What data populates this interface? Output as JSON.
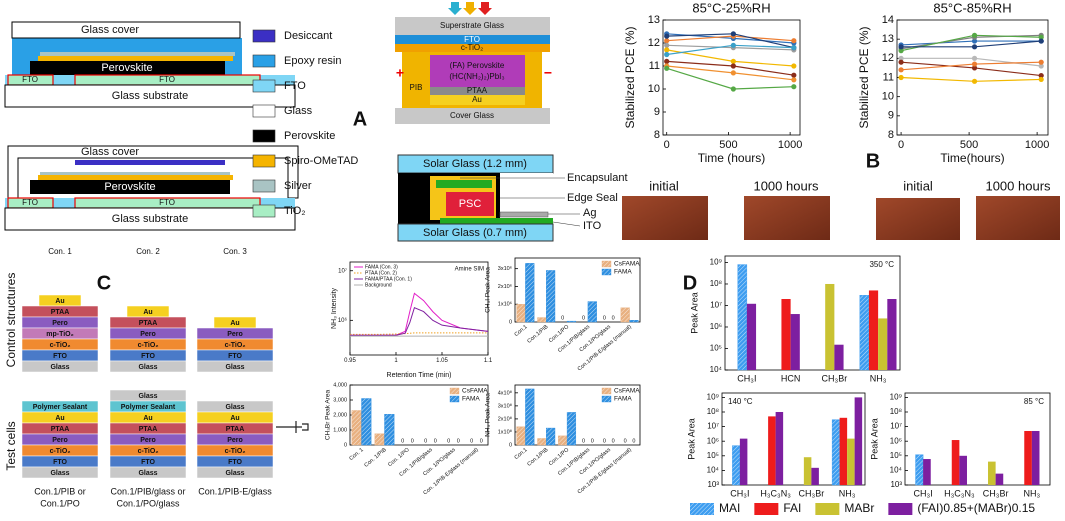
{
  "panel_labels": [
    "A",
    "B",
    "C",
    "D"
  ],
  "encapsulation_diagrams": [
    {
      "glass_cover": "Glass cover",
      "perovskite": "Perovskite",
      "fto": [
        "FTO",
        "FTO"
      ],
      "substrate": "Glass substrate"
    },
    {
      "glass_cover": "Glass cover",
      "perovskite": "Perovskite",
      "fto": [
        "FTO",
        "FTO"
      ],
      "substrate": "Glass substrate"
    }
  ],
  "materials_legend": [
    {
      "name": "Desiccant",
      "color": "#3b2fc4"
    },
    {
      "name": "Epoxy resin",
      "color": "#2aa0e6"
    },
    {
      "name": "FTO",
      "color": "#7fd6f5"
    },
    {
      "name": "Glass",
      "color": "#ffffff"
    },
    {
      "name": "Perovskite",
      "color": "#000000"
    },
    {
      "name": "Spiro-OMeTAD",
      "color": "#f5b400"
    },
    {
      "name": "Silver",
      "color": "#a9c4c4"
    },
    {
      "name": "TiO₂",
      "color": "#a8eec4"
    }
  ],
  "device_diagram": {
    "superstrate": "Superstrate Glass",
    "fto": "FTO",
    "ctio2": "c-TiO₂",
    "perovskite": [
      "(FA) Perovskite",
      "(HC(NH₂)₂)PbI₃"
    ],
    "ptaa": "PTAA",
    "au": "Au",
    "pib": "PIB",
    "cover": "Cover Glass",
    "plus": "+",
    "minus": "−"
  },
  "module_diagram": {
    "top_glass": "Solar Glass (1.2 mm)",
    "psc": "PSC",
    "bottom_glass": "Solar Glass (0.7 mm)",
    "encapsulant": "Encapsulant",
    "edge_seal": "Edge Seal",
    "ag": "Ag",
    "ito": "ITO"
  },
  "photos": [
    [
      "initial",
      "1000 hours"
    ],
    [
      "initial",
      "1000 hours"
    ]
  ],
  "structures": {
    "row_labels": [
      "Control structures",
      "Test cells"
    ],
    "columns": [
      "Con. 1",
      "Con. 2",
      "Con. 3"
    ],
    "control_stacks": [
      [
        {
          "name": "Au",
          "color": "#f5d020"
        },
        {
          "name": "PTAA",
          "color": "#c4505c"
        },
        {
          "name": "Pero",
          "color": "#8a5cc0"
        },
        {
          "name": "mp-TiO₂",
          "color": "#c27ab8"
        },
        {
          "name": "c-TiO₂",
          "color": "#f08a30"
        },
        {
          "name": "FTO",
          "color": "#4a7ac8"
        },
        {
          "name": "Glass",
          "color": "#c8c8c8"
        }
      ],
      [
        {
          "name": "Au",
          "color": "#f5d020"
        },
        {
          "name": "PTAA",
          "color": "#c4505c"
        },
        {
          "name": "Pero",
          "color": "#8a5cc0"
        },
        {
          "name": "c-TiO₂",
          "color": "#f08a30"
        },
        {
          "name": "FTO",
          "color": "#4a7ac8"
        },
        {
          "name": "Glass",
          "color": "#c8c8c8"
        }
      ],
      [
        {
          "name": "Au",
          "color": "#f5d020"
        },
        {
          "name": "Pero",
          "color": "#8a5cc0"
        },
        {
          "name": "c-TiO₂",
          "color": "#f08a30"
        },
        {
          "name": "FTO",
          "color": "#4a7ac8"
        },
        {
          "name": "Glass",
          "color": "#c8c8c8"
        }
      ]
    ],
    "test_stacks": [
      [
        {
          "name": "Polymer Sealant",
          "color": "#5ec4d0"
        },
        {
          "name": "Au",
          "color": "#f5d020"
        },
        {
          "name": "PTAA",
          "color": "#c4505c"
        },
        {
          "name": "Pero",
          "color": "#8a5cc0"
        },
        {
          "name": "c-TiO₂",
          "color": "#f08a30"
        },
        {
          "name": "FTO",
          "color": "#4a7ac8"
        },
        {
          "name": "Glass",
          "color": "#c8c8c8"
        }
      ],
      [
        {
          "name": "Glass",
          "color": "#c8c8c8"
        },
        {
          "name": "Polymer Sealant",
          "color": "#5ec4d0"
        },
        {
          "name": "Au",
          "color": "#f5d020"
        },
        {
          "name": "PTAA",
          "color": "#c4505c"
        },
        {
          "name": "Pero",
          "color": "#8a5cc0"
        },
        {
          "name": "c-TiO₂",
          "color": "#f08a30"
        },
        {
          "name": "FTO",
          "color": "#4a7ac8"
        },
        {
          "name": "Glass",
          "color": "#c8c8c8"
        }
      ],
      [
        {
          "name": "Glass",
          "color": "#c8c8c8"
        },
        {
          "name": "Au",
          "color": "#f5d020"
        },
        {
          "name": "PTAA",
          "color": "#c4505c"
        },
        {
          "name": "Pero",
          "color": "#8a5cc0"
        },
        {
          "name": "c-TiO₂",
          "color": "#f08a30"
        },
        {
          "name": "FTO",
          "color": "#4a7ac8"
        },
        {
          "name": "Glass",
          "color": "#c8c8c8"
        }
      ]
    ],
    "captions": [
      [
        "Con.1/PIB or",
        "Con.1/PO"
      ],
      [
        "Con.1/PIB/glass or",
        "Con.1/PO/glass"
      ],
      [
        "Con.1/PIB-E/glass"
      ]
    ]
  },
  "chart_data": [
    {
      "type": "line",
      "title": "85°C-25%RH",
      "xlabel": "Time (hours)",
      "ylabel": "Stabilized PCE (%)",
      "markers": true,
      "x": [
        0,
        540,
        1030
      ],
      "xlim": [
        -30,
        1080
      ],
      "xticks": [
        0,
        500,
        1000
      ],
      "ylim": [
        8,
        13
      ],
      "yticks": [
        8,
        9,
        10,
        11,
        12,
        13
      ],
      "series": [
        {
          "color": "#2f6fb8",
          "values": [
            12.4,
            12.2,
            12.0
          ]
        },
        {
          "color": "#ed7d31",
          "values": [
            12.1,
            12.3,
            12.1
          ]
        },
        {
          "color": "#9e9e9e",
          "values": [
            11.9,
            11.8,
            11.7
          ]
        },
        {
          "color": "#f2b800",
          "values": [
            11.7,
            11.2,
            11.0
          ]
        },
        {
          "color": "#8b2d1a",
          "values": [
            11.2,
            11.0,
            10.6
          ]
        },
        {
          "color": "#f09030",
          "values": [
            11.0,
            10.7,
            10.4
          ]
        },
        {
          "color": "#55a845",
          "values": [
            10.9,
            10.0,
            10.1
          ]
        },
        {
          "color": "#1f3f78",
          "values": [
            12.3,
            12.4,
            11.8
          ]
        },
        {
          "color": "#3aa0c8",
          "values": [
            11.5,
            11.9,
            11.8
          ]
        }
      ]
    },
    {
      "type": "line",
      "title": "85°C-85%RH",
      "xlabel": "Time(hours)",
      "ylabel": "Stabilized PCE (%)",
      "markers": true,
      "x": [
        0,
        540,
        1030
      ],
      "xlim": [
        -30,
        1080
      ],
      "xticks": [
        0,
        500,
        1000
      ],
      "ylim": [
        8,
        14
      ],
      "yticks": [
        8,
        9,
        10,
        11,
        12,
        13,
        14
      ],
      "series": [
        {
          "color": "#2f6fb8",
          "values": [
            12.7,
            12.9,
            12.9
          ]
        },
        {
          "color": "#7f7f7f",
          "values": [
            12.5,
            13.1,
            13.2
          ]
        },
        {
          "color": "#b8b8b8",
          "values": [
            12.0,
            12.0,
            11.6
          ]
        },
        {
          "color": "#8b2d1a",
          "values": [
            11.8,
            11.5,
            11.1
          ]
        },
        {
          "color": "#f2b800",
          "values": [
            11.0,
            10.8,
            10.9
          ]
        },
        {
          "color": "#55a845",
          "values": [
            12.4,
            13.2,
            13.1
          ]
        },
        {
          "color": "#ed7d31",
          "values": [
            11.4,
            11.7,
            11.8
          ]
        },
        {
          "color": "#1f3f78",
          "values": [
            12.6,
            12.6,
            12.9
          ]
        }
      ]
    },
    {
      "type": "line",
      "annotation": "Amine SIM",
      "xlabel": "Retention Time (min)",
      "ylabel": "NH₃ Intensity",
      "log_scale": true,
      "legend": "upper left",
      "x": [
        0.95,
        0.98,
        1.0,
        1.01,
        1.015,
        1.02,
        1.03,
        1.04,
        1.05,
        1.07,
        1.1
      ],
      "xlim": [
        0.95,
        1.1
      ],
      "xticks": [
        0.95,
        1,
        1.05,
        1.1
      ],
      "ylim": [
        200000,
        15000000
      ],
      "yticks": [
        {
          "value": 1000000,
          "label": "10⁶"
        },
        {
          "value": 10000000,
          "label": "10⁷"
        }
      ],
      "series": [
        {
          "name": "FAMA (Con. 3)",
          "color": "#e21fc8",
          "values": [
            500000,
            500000,
            500000,
            600000,
            1500000,
            3500000,
            2500000,
            1500000,
            1000000,
            700000,
            600000
          ]
        },
        {
          "name": "PTAA (Con. 2)",
          "color": "#f0a020",
          "dash": true,
          "values": [
            520000,
            520000,
            530000,
            540000,
            550000,
            560000,
            560000,
            560000,
            560000,
            560000,
            560000
          ]
        },
        {
          "name": "FAMA/PTAA (Con. 1)",
          "color": "#8020a0",
          "values": [
            500000,
            500000,
            500000,
            550000,
            900000,
            1800000,
            1500000,
            1000000,
            800000,
            700000,
            600000
          ]
        },
        {
          "name": "Background",
          "color": "#b0b0b0",
          "values": [
            480000,
            480000,
            480000,
            480000,
            480000,
            480000,
            480000,
            480000,
            480000,
            480000,
            480000
          ]
        }
      ]
    },
    {
      "type": "bar",
      "ylabel": "CH₃I Peak Area",
      "legend": "upper right",
      "categories": [
        "Con.1",
        "Con.1/PIB",
        "Con.1/PO",
        "Con.1/PIB/glass",
        "Con.1/PO/glass",
        "Con.1/PIB-E/glass (manual)"
      ],
      "ylim": [
        0,
        3600000
      ],
      "yticks": [
        0,
        {
          "value": 1000000,
          "label": "1x10⁶"
        },
        {
          "value": 2000000,
          "label": "2x10⁶"
        },
        {
          "value": 3000000,
          "label": "3x10⁶"
        }
      ],
      "series": [
        {
          "name": "CsFAMA",
          "color": "#e8b080",
          "hatch": true,
          "values": [
            1000000,
            250000,
            0,
            0,
            0,
            800000
          ],
          "value_labels": [
            null,
            null,
            "0",
            "0",
            "0",
            null
          ]
        },
        {
          "name": "FAMA",
          "color": "#2f8fe0",
          "hatch": true,
          "values": [
            3300000,
            2900000,
            50000,
            1150000,
            0,
            100000
          ],
          "value_labels": [
            null,
            null,
            null,
            null,
            "0",
            null
          ]
        }
      ]
    },
    {
      "type": "bar",
      "ylabel": "CH₃Br Peak Area",
      "legend": "upper right",
      "categories": [
        "Con. 1",
        "Con. 1/PIB",
        "Con. 1/PO",
        "Con. 1/PIB/glass",
        "Con. 1/PO/glass",
        "Con. 1/PIB-E/glass (manual)"
      ],
      "ylim": [
        0,
        4000
      ],
      "yticks": [
        0,
        {
          "value": 1000,
          "label": "1,000"
        },
        {
          "value": 2000,
          "label": "2,000"
        },
        {
          "value": 3000,
          "label": "3,000"
        },
        {
          "value": 4000,
          "label": "4,000"
        }
      ],
      "series": [
        {
          "name": "CsFAMA",
          "color": "#e8b080",
          "hatch": true,
          "values": [
            2300,
            750,
            0,
            0,
            0,
            0
          ],
          "value_labels": [
            null,
            null,
            "0",
            "0",
            "0",
            "0"
          ]
        },
        {
          "name": "FAMA",
          "color": "#2f8fe0",
          "hatch": true,
          "values": [
            3100,
            2050,
            0,
            0,
            0,
            0
          ],
          "value_labels": [
            null,
            null,
            "0",
            "0",
            "0",
            "0"
          ]
        }
      ]
    },
    {
      "type": "bar",
      "ylabel": "NH₃ Peak Area",
      "legend": "upper right",
      "categories": [
        "Con.1",
        "Con.1/PIB",
        "Con.1/PO",
        "Con.1/PIB/glass",
        "Con.1/PO/glass",
        "Con.1/PIB-E/glass (manual)"
      ],
      "ylim": [
        0,
        460000000
      ],
      "yticks": [
        0,
        {
          "value": 100000000,
          "label": "1x10⁸"
        },
        {
          "value": 200000000,
          "label": "2x10⁸"
        },
        {
          "value": 300000000,
          "label": "3x10⁸"
        },
        {
          "value": 400000000,
          "label": "4x10⁸"
        }
      ],
      "series": [
        {
          "name": "CsFAMA",
          "color": "#e8b080",
          "hatch": true,
          "values": [
            140000000,
            50000000,
            70000000,
            0,
            0,
            0
          ],
          "value_labels": [
            null,
            null,
            null,
            "0",
            "0",
            "0"
          ]
        },
        {
          "name": "FAMA",
          "color": "#2f8fe0",
          "hatch": true,
          "values": [
            430000000,
            130000000,
            250000000,
            0,
            0,
            0
          ],
          "value_labels": [
            null,
            null,
            null,
            "0",
            "0",
            "0"
          ]
        }
      ]
    },
    {
      "type": "bar",
      "title": "350 °C",
      "ylabel": "Peak Area",
      "log_scale": true,
      "legend": "bottom",
      "categories": [
        "CH₃I",
        "HCN",
        "CH₃Br",
        "NH₃"
      ],
      "ylim": [
        10000,
        2000000000
      ],
      "yticks": [
        {
          "value": 10000,
          "label": "10⁴"
        },
        {
          "value": 100000,
          "label": "10⁵"
        },
        {
          "value": 1000000,
          "label": "10⁶"
        },
        {
          "value": 10000000,
          "label": "10⁷"
        },
        {
          "value": 100000000,
          "label": "10⁸"
        },
        {
          "value": 1000000000,
          "label": "10⁹"
        }
      ],
      "series": [
        {
          "name": "MAI",
          "color": "#3d9df0",
          "hatch": true,
          "values": [
            800000000,
            null,
            null,
            30000000
          ]
        },
        {
          "name": "FAI",
          "color": "#ee1c1c",
          "values": [
            null,
            20000000,
            null,
            50000000
          ]
        },
        {
          "name": "MABr",
          "color": "#c9c232",
          "values": [
            null,
            null,
            100000000,
            2500000
          ]
        },
        {
          "name": "(FAI)0.85+(MABr)0.15",
          "color": "#7d1fa0",
          "values": [
            12000000,
            4000000,
            150000,
            20000000
          ]
        }
      ]
    },
    {
      "type": "bar",
      "title": "140 °C",
      "ylabel": "Peak Area",
      "log_scale": true,
      "categories": [
        "CH₃I",
        "H₃C₃N₃",
        "CH₃Br",
        "NH₃"
      ],
      "ylim": [
        1000,
        2000000000
      ],
      "yticks": [
        {
          "value": 1000,
          "label": "10³"
        },
        {
          "value": 10000,
          "label": "10⁴"
        },
        {
          "value": 100000,
          "label": "10⁵"
        },
        {
          "value": 1000000,
          "label": "10⁶"
        },
        {
          "value": 10000000,
          "label": "10⁷"
        },
        {
          "value": 100000000,
          "label": "10⁸"
        },
        {
          "value": 1000000000,
          "label": "10⁹"
        }
      ],
      "series": [
        {
          "color": "#3d9df0",
          "hatch": true,
          "values": [
            500000,
            null,
            null,
            30000000
          ]
        },
        {
          "color": "#ee1c1c",
          "values": [
            null,
            50000000,
            null,
            40000000
          ]
        },
        {
          "color": "#c9c232",
          "values": [
            null,
            null,
            80000,
            1500000
          ]
        },
        {
          "color": "#7d1fa0",
          "values": [
            1500000,
            100000000,
            15000,
            1000000000
          ]
        }
      ]
    },
    {
      "type": "bar",
      "title": "85 °C",
      "ylabel": "Peak Area",
      "log_scale": true,
      "categories": [
        "CH₃I",
        "H₃C₃N₃",
        "CH₃Br",
        "NH₃"
      ],
      "ylim": [
        1000,
        2000000000
      ],
      "yticks": [
        {
          "value": 1000,
          "label": "10³"
        },
        {
          "value": 10000,
          "label": "10⁴"
        },
        {
          "value": 100000,
          "label": "10⁵"
        },
        {
          "value": 1000000,
          "label": "10⁶"
        },
        {
          "value": 10000000,
          "label": "10⁷"
        },
        {
          "value": 100000000,
          "label": "10⁸"
        },
        {
          "value": 1000000000,
          "label": "10⁹"
        }
      ],
      "series": [
        {
          "color": "#3d9df0",
          "hatch": true,
          "values": [
            120000,
            null,
            null,
            null
          ]
        },
        {
          "color": "#ee1c1c",
          "values": [
            null,
            1200000,
            null,
            5000000
          ]
        },
        {
          "color": "#c9c232",
          "values": [
            null,
            null,
            40000,
            null
          ]
        },
        {
          "color": "#7d1fa0",
          "values": [
            60000,
            100000,
            6000,
            5000000
          ]
        }
      ]
    }
  ]
}
